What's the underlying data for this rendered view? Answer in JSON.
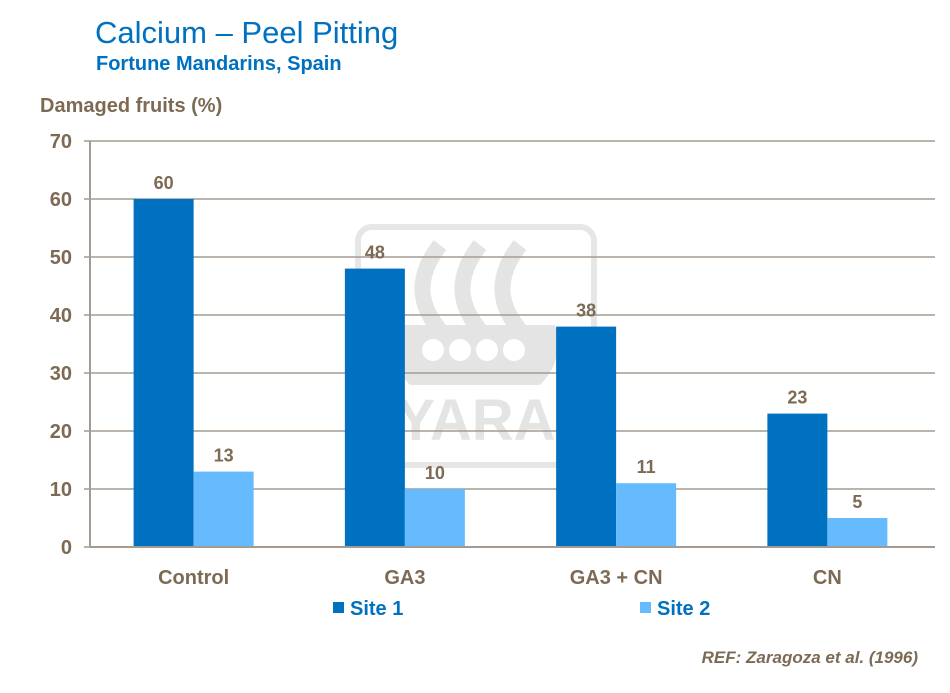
{
  "chart_data": {
    "type": "bar",
    "title": "Calcium – Peel Pitting",
    "subtitle": "Fortune Mandarins, Spain",
    "ylabel": "Damaged fruits (%)",
    "xlabel": "",
    "ylim": [
      0,
      70
    ],
    "yticks": [
      0,
      10,
      20,
      30,
      40,
      50,
      60,
      70
    ],
    "grid": true,
    "categories": [
      "Control",
      "GA3",
      "GA3 + CN",
      "CN"
    ],
    "series": [
      {
        "name": "Site 1",
        "values": [
          60,
          48,
          38,
          23
        ],
        "color": "#0070c0"
      },
      {
        "name": "Site 2",
        "values": [
          13,
          10,
          11,
          5
        ],
        "color": "#66bbff"
      }
    ],
    "legend": "bottom",
    "reference": "REF: Zaragoza et al. (1996)",
    "watermark": "YARA"
  }
}
